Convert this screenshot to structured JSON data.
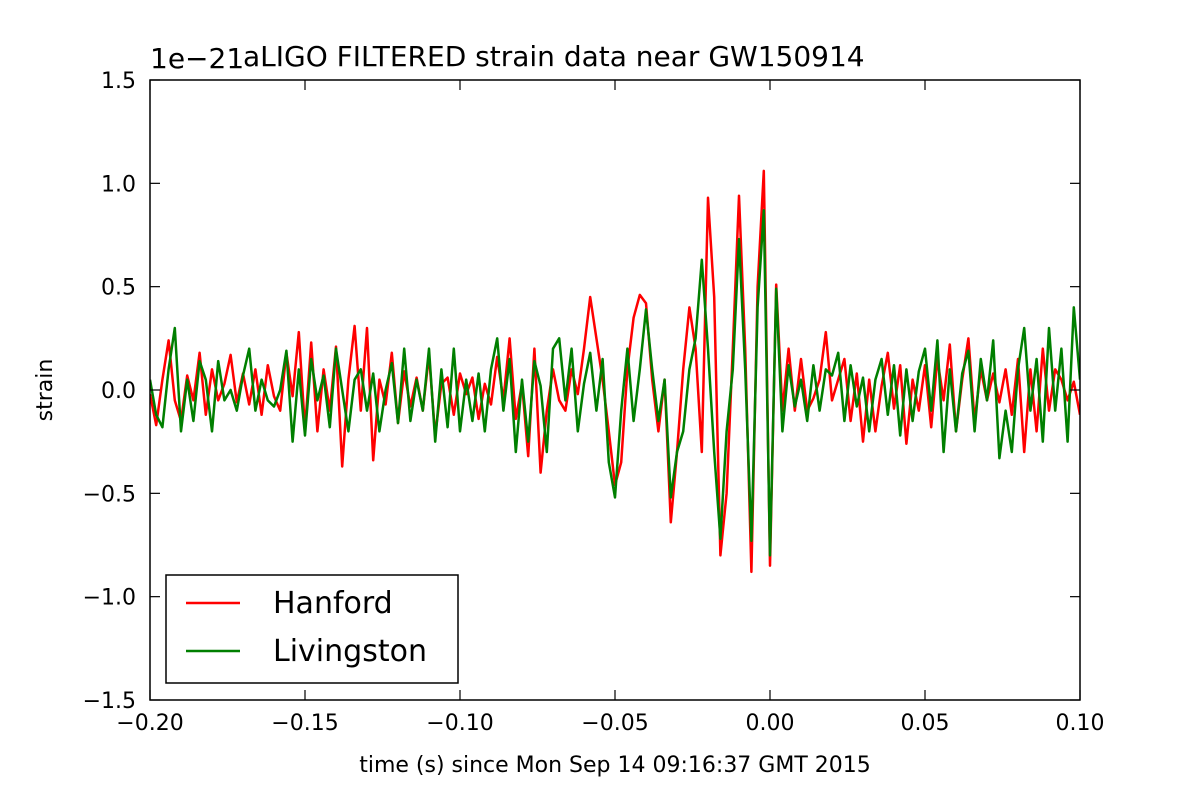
{
  "chart_data": {
    "type": "line",
    "title": "aLIGO FILTERED strain data near GW150914",
    "offset_label": "1e−21",
    "xlabel": "time (s) since Mon Sep 14 09:16:37 GMT 2015",
    "ylabel": "strain",
    "xlim": [
      -0.2,
      0.1
    ],
    "ylim": [
      -1.5,
      1.5
    ],
    "xticks": [
      -0.2,
      -0.15,
      -0.1,
      -0.05,
      0.0,
      0.05,
      0.1
    ],
    "xtick_labels": [
      "−0.20",
      "−0.15",
      "−0.10",
      "−0.05",
      "0.00",
      "0.05",
      "0.10"
    ],
    "yticks": [
      1.5,
      1.0,
      0.5,
      0.0,
      -0.5,
      -1.0,
      -1.5
    ],
    "ytick_labels": [
      "1.5",
      "1.0",
      "0.5",
      "0.0",
      "−0.5",
      "−1.0",
      "−1.5"
    ],
    "grid": false,
    "legend_position": "lower-left",
    "series": [
      {
        "name": "Hanford",
        "color": "#ff0000",
        "x": [
          -0.2,
          -0.198,
          -0.196,
          -0.194,
          -0.192,
          -0.19,
          -0.188,
          -0.186,
          -0.184,
          -0.182,
          -0.18,
          -0.178,
          -0.176,
          -0.174,
          -0.172,
          -0.17,
          -0.168,
          -0.166,
          -0.164,
          -0.162,
          -0.16,
          -0.158,
          -0.156,
          -0.154,
          -0.152,
          -0.15,
          -0.148,
          -0.146,
          -0.144,
          -0.142,
          -0.14,
          -0.138,
          -0.136,
          -0.134,
          -0.132,
          -0.13,
          -0.128,
          -0.126,
          -0.124,
          -0.122,
          -0.12,
          -0.118,
          -0.116,
          -0.114,
          -0.112,
          -0.11,
          -0.108,
          -0.106,
          -0.104,
          -0.102,
          -0.1,
          -0.098,
          -0.096,
          -0.094,
          -0.092,
          -0.09,
          -0.088,
          -0.086,
          -0.084,
          -0.082,
          -0.08,
          -0.078,
          -0.076,
          -0.074,
          -0.072,
          -0.07,
          -0.068,
          -0.066,
          -0.064,
          -0.062,
          -0.06,
          -0.058,
          -0.056,
          -0.054,
          -0.052,
          -0.05,
          -0.048,
          -0.046,
          -0.044,
          -0.042,
          -0.04,
          -0.038,
          -0.036,
          -0.034,
          -0.032,
          -0.03,
          -0.028,
          -0.026,
          -0.024,
          -0.022,
          -0.02,
          -0.018,
          -0.016,
          -0.014,
          -0.012,
          -0.01,
          -0.008,
          -0.006,
          -0.004,
          -0.002,
          0.0,
          0.002,
          0.004,
          0.006,
          0.008,
          0.01,
          0.012,
          0.014,
          0.016,
          0.018,
          0.02,
          0.022,
          0.024,
          0.026,
          0.028,
          0.03,
          0.032,
          0.034,
          0.036,
          0.038,
          0.04,
          0.042,
          0.044,
          0.046,
          0.048,
          0.05,
          0.052,
          0.054,
          0.056,
          0.058,
          0.06,
          0.062,
          0.064,
          0.066,
          0.068,
          0.07,
          0.072,
          0.074,
          0.076,
          0.078,
          0.08,
          0.082,
          0.084,
          0.086,
          0.088,
          0.09,
          0.092,
          0.094,
          0.096,
          0.098,
          0.1
        ],
        "y": [
          -0.02,
          -0.17,
          0.05,
          0.24,
          -0.05,
          -0.15,
          0.07,
          -0.05,
          0.18,
          -0.12,
          0.1,
          -0.05,
          0.03,
          0.17,
          -0.06,
          0.08,
          -0.07,
          0.1,
          -0.12,
          0.12,
          -0.03,
          -0.1,
          0.18,
          -0.03,
          0.28,
          -0.19,
          0.23,
          -0.2,
          0.1,
          -0.1,
          0.21,
          -0.37,
          0.05,
          0.31,
          -0.1,
          0.3,
          -0.34,
          0.05,
          -0.07,
          0.18,
          -0.16,
          0.09,
          -0.08,
          0.06,
          -0.1,
          0.17,
          -0.22,
          0.03,
          0.06,
          -0.12,
          0.08,
          -0.02,
          0.06,
          -0.14,
          0.03,
          -0.07,
          0.16,
          -0.05,
          0.25,
          -0.14,
          0.03,
          -0.32,
          0.2,
          -0.4,
          -0.1,
          0.1,
          -0.05,
          -0.1,
          0.1,
          -0.02,
          0.2,
          0.45,
          0.25,
          0.05,
          -0.2,
          -0.46,
          -0.35,
          0.1,
          0.35,
          0.46,
          0.42,
          0.05,
          -0.2,
          0.05,
          -0.64,
          -0.3,
          0.1,
          0.4,
          0.2,
          -0.3,
          0.93,
          0.45,
          -0.8,
          -0.5,
          0.2,
          0.94,
          0.2,
          -0.88,
          0.5,
          1.06,
          -0.85,
          0.51,
          -0.1,
          0.2,
          -0.1,
          0.15,
          -0.1,
          -0.04,
          0.05,
          0.28,
          -0.05,
          0.05,
          0.15,
          -0.15,
          0.08,
          -0.25,
          0.05,
          -0.2,
          0.02,
          0.18,
          -0.09,
          0.12,
          -0.26,
          0.05,
          -0.1,
          0.12,
          -0.18,
          0.15,
          -0.05,
          0.22,
          -0.2,
          0.05,
          0.25,
          -0.15,
          0.1,
          -0.05,
          0.08,
          -0.06,
          0.1,
          -0.12,
          0.15,
          -0.3,
          0.1,
          -0.2,
          0.2,
          -0.1,
          0.1,
          0.05,
          -0.05,
          0.04,
          -0.12
        ]
      },
      {
        "name": "Livingston",
        "color": "#007f00",
        "x": [
          -0.2,
          -0.198,
          -0.196,
          -0.194,
          -0.192,
          -0.19,
          -0.188,
          -0.186,
          -0.184,
          -0.182,
          -0.18,
          -0.178,
          -0.176,
          -0.174,
          -0.172,
          -0.17,
          -0.168,
          -0.166,
          -0.164,
          -0.162,
          -0.16,
          -0.158,
          -0.156,
          -0.154,
          -0.152,
          -0.15,
          -0.148,
          -0.146,
          -0.144,
          -0.142,
          -0.14,
          -0.138,
          -0.136,
          -0.134,
          -0.132,
          -0.13,
          -0.128,
          -0.126,
          -0.124,
          -0.122,
          -0.12,
          -0.118,
          -0.116,
          -0.114,
          -0.112,
          -0.11,
          -0.108,
          -0.106,
          -0.104,
          -0.102,
          -0.1,
          -0.098,
          -0.096,
          -0.094,
          -0.092,
          -0.09,
          -0.088,
          -0.086,
          -0.084,
          -0.082,
          -0.08,
          -0.078,
          -0.076,
          -0.074,
          -0.072,
          -0.07,
          -0.068,
          -0.066,
          -0.064,
          -0.062,
          -0.06,
          -0.058,
          -0.056,
          -0.054,
          -0.052,
          -0.05,
          -0.048,
          -0.046,
          -0.044,
          -0.042,
          -0.04,
          -0.038,
          -0.036,
          -0.034,
          -0.032,
          -0.03,
          -0.028,
          -0.026,
          -0.024,
          -0.022,
          -0.02,
          -0.018,
          -0.016,
          -0.014,
          -0.012,
          -0.01,
          -0.008,
          -0.006,
          -0.004,
          -0.002,
          0.0,
          0.002,
          0.004,
          0.006,
          0.008,
          0.01,
          0.012,
          0.014,
          0.016,
          0.018,
          0.02,
          0.022,
          0.024,
          0.026,
          0.028,
          0.03,
          0.032,
          0.034,
          0.036,
          0.038,
          0.04,
          0.042,
          0.044,
          0.046,
          0.048,
          0.05,
          0.052,
          0.054,
          0.056,
          0.058,
          0.06,
          0.062,
          0.064,
          0.066,
          0.068,
          0.07,
          0.072,
          0.074,
          0.076,
          0.078,
          0.08,
          0.082,
          0.084,
          0.086,
          0.088,
          0.09,
          0.092,
          0.094,
          0.096,
          0.098,
          0.1
        ],
        "y": [
          0.05,
          -0.12,
          -0.18,
          0.1,
          0.3,
          -0.2,
          0.05,
          -0.15,
          0.14,
          0.05,
          -0.2,
          0.14,
          -0.05,
          0.0,
          -0.1,
          0.07,
          0.2,
          -0.1,
          0.05,
          -0.05,
          -0.08,
          0.0,
          0.19,
          -0.25,
          0.1,
          -0.22,
          0.15,
          -0.05,
          0.07,
          -0.18,
          0.2,
          0.0,
          -0.2,
          0.05,
          0.1,
          -0.1,
          0.08,
          -0.2,
          0.0,
          0.13,
          -0.16,
          0.2,
          -0.15,
          0.05,
          -0.1,
          0.2,
          -0.25,
          0.1,
          -0.18,
          0.2,
          -0.2,
          0.05,
          -0.15,
          0.08,
          -0.2,
          0.1,
          0.25,
          -0.1,
          0.15,
          -0.3,
          0.05,
          -0.25,
          0.14,
          0.02,
          -0.3,
          0.2,
          0.25,
          -0.05,
          0.2,
          -0.2,
          0.03,
          0.18,
          -0.1,
          0.15,
          -0.35,
          -0.52,
          -0.1,
          0.2,
          -0.15,
          0.1,
          0.39,
          0.1,
          -0.15,
          0.05,
          -0.52,
          -0.3,
          -0.2,
          0.1,
          0.25,
          0.63,
          0.2,
          -0.3,
          -0.72,
          -0.2,
          0.1,
          0.73,
          0.1,
          -0.73,
          0.4,
          0.87,
          -0.8,
          0.49,
          -0.2,
          0.12,
          -0.08,
          0.05,
          -0.15,
          0.12,
          -0.1,
          0.1,
          0.07,
          0.18,
          -0.15,
          0.12,
          -0.08,
          0.06,
          -0.2,
          0.05,
          0.15,
          -0.12,
          0.12,
          -0.22,
          0.1,
          -0.15,
          0.09,
          0.2,
          -0.1,
          0.24,
          -0.3,
          0.1,
          -0.2,
          0.08,
          0.19,
          -0.2,
          0.15,
          -0.05,
          0.24,
          -0.33,
          -0.1,
          -0.3,
          0.1,
          0.3,
          -0.1,
          0.15,
          -0.25,
          0.3,
          -0.1,
          0.2,
          -0.25,
          0.4,
          0.05
        ]
      }
    ]
  }
}
